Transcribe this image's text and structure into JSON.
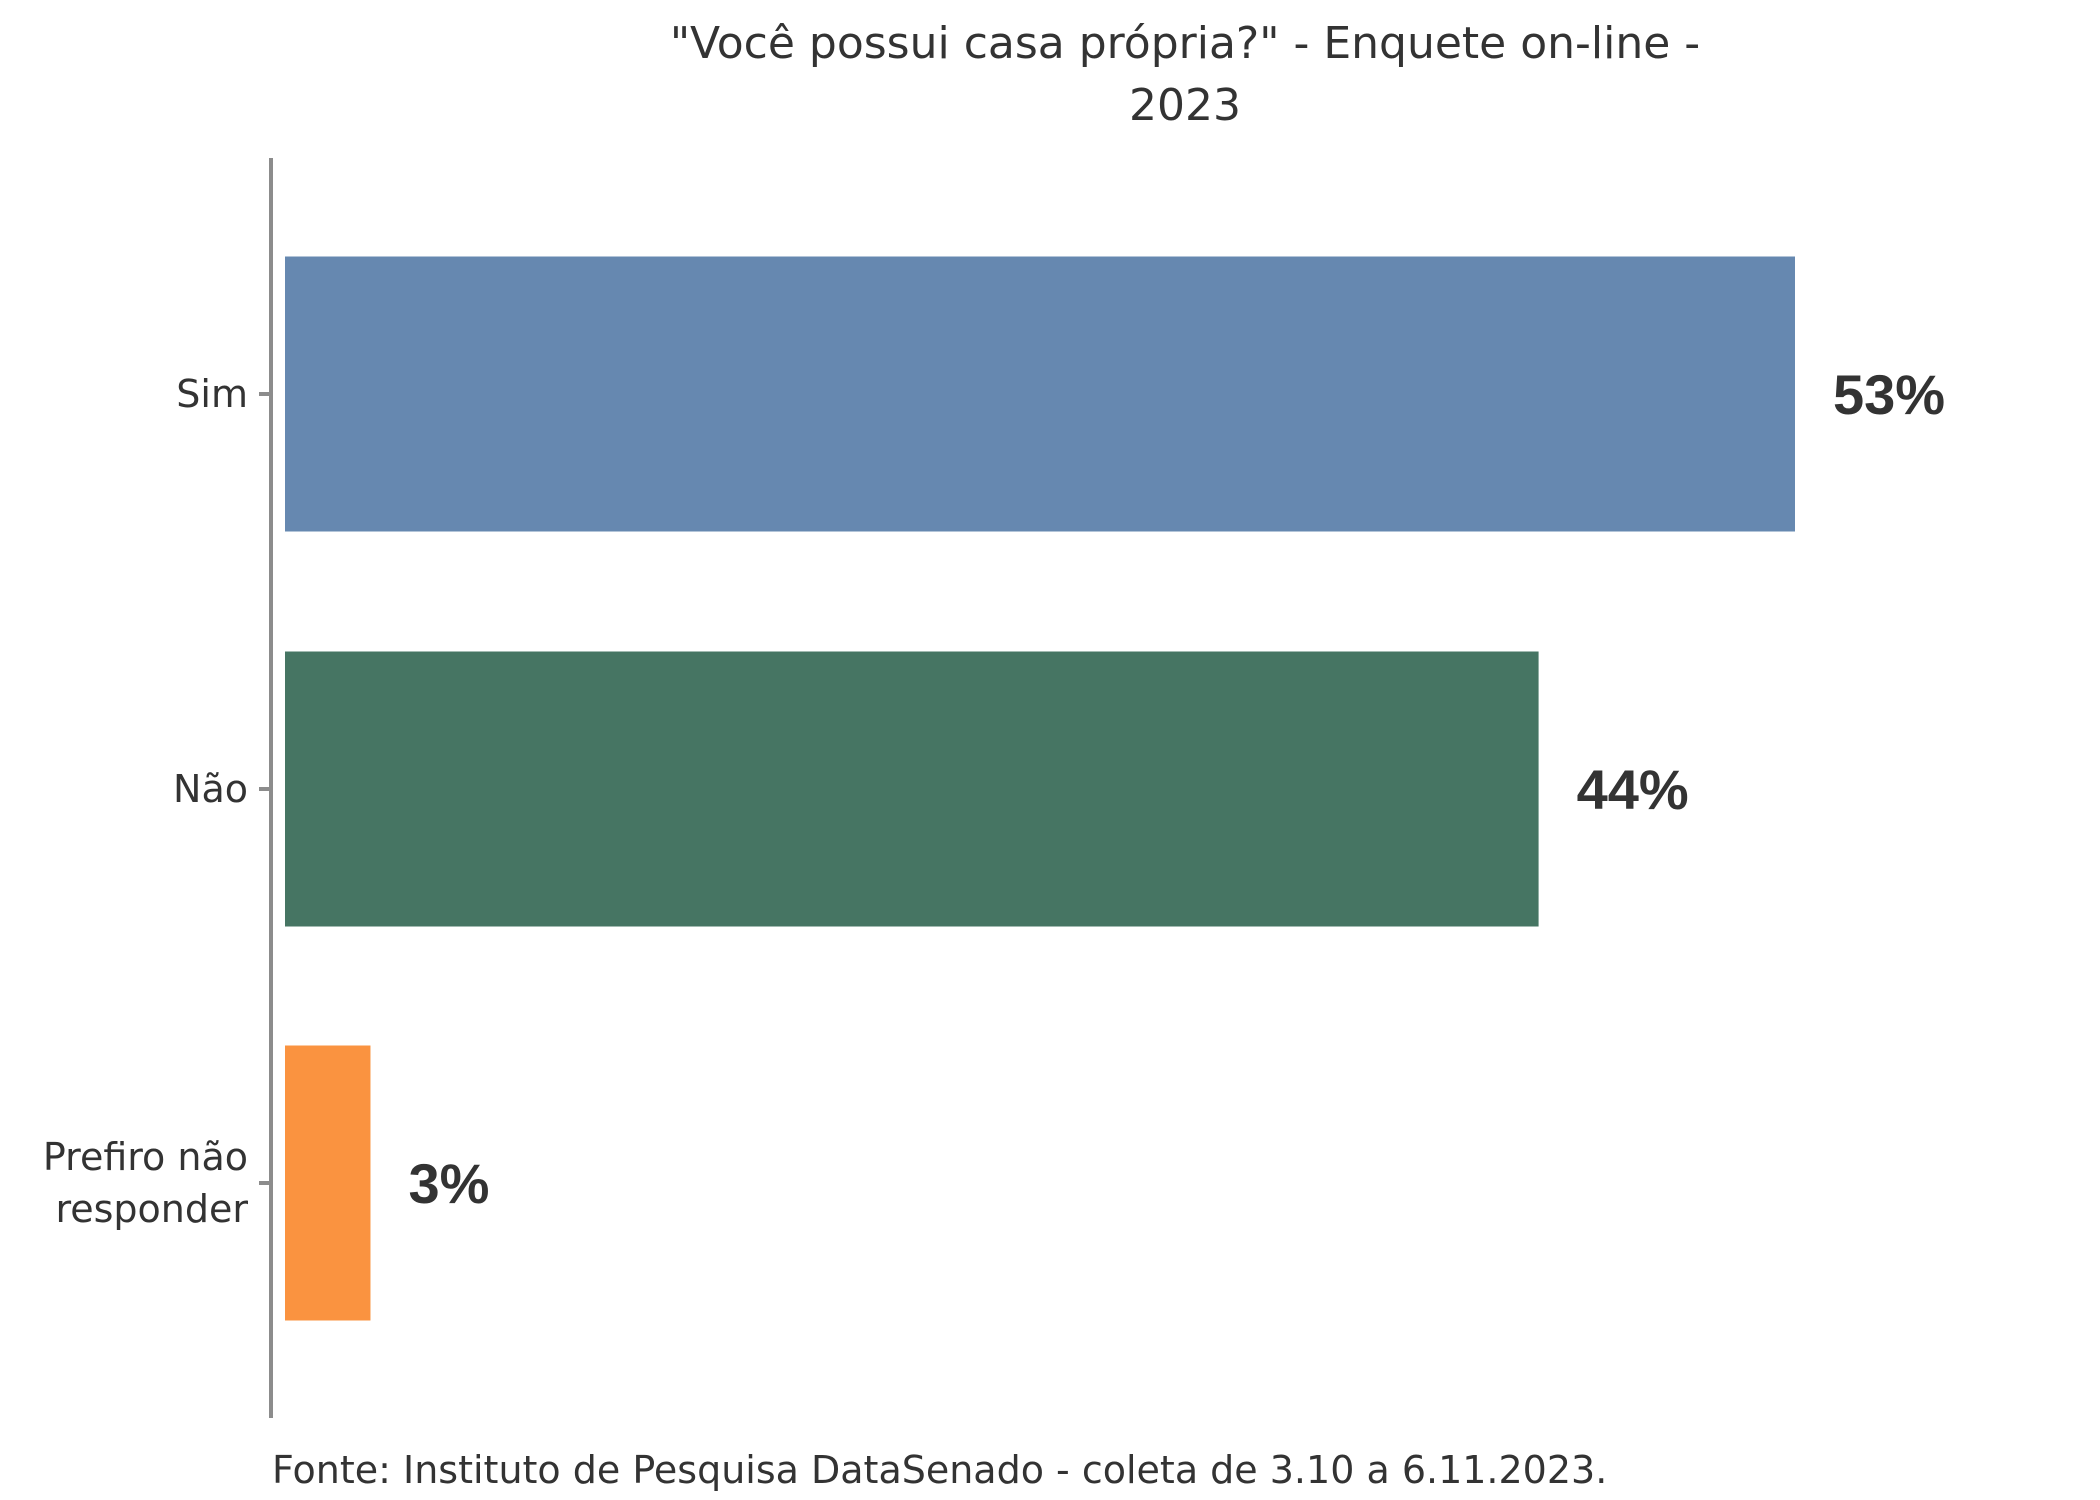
{
  "chart_data": {
    "type": "bar",
    "orientation": "horizontal",
    "title": [
      "\"Você possui casa própria?\" - Enquete on-line -",
      "2023"
    ],
    "categories": [
      [
        "Sim"
      ],
      [
        "Não"
      ],
      [
        "Prefiro não",
        "responder"
      ]
    ],
    "values": [
      53,
      44,
      3
    ],
    "value_labels": [
      "53%",
      "44%",
      "3%"
    ],
    "colors": [
      "#6688b0",
      "#467563",
      "#fa9340"
    ],
    "xlim": [
      0,
      53
    ],
    "grid": false,
    "legend": "none",
    "source": "Fonte: Instituto de Pesquisa DataSenado - coleta de 3.10 a 6.11.2023."
  }
}
